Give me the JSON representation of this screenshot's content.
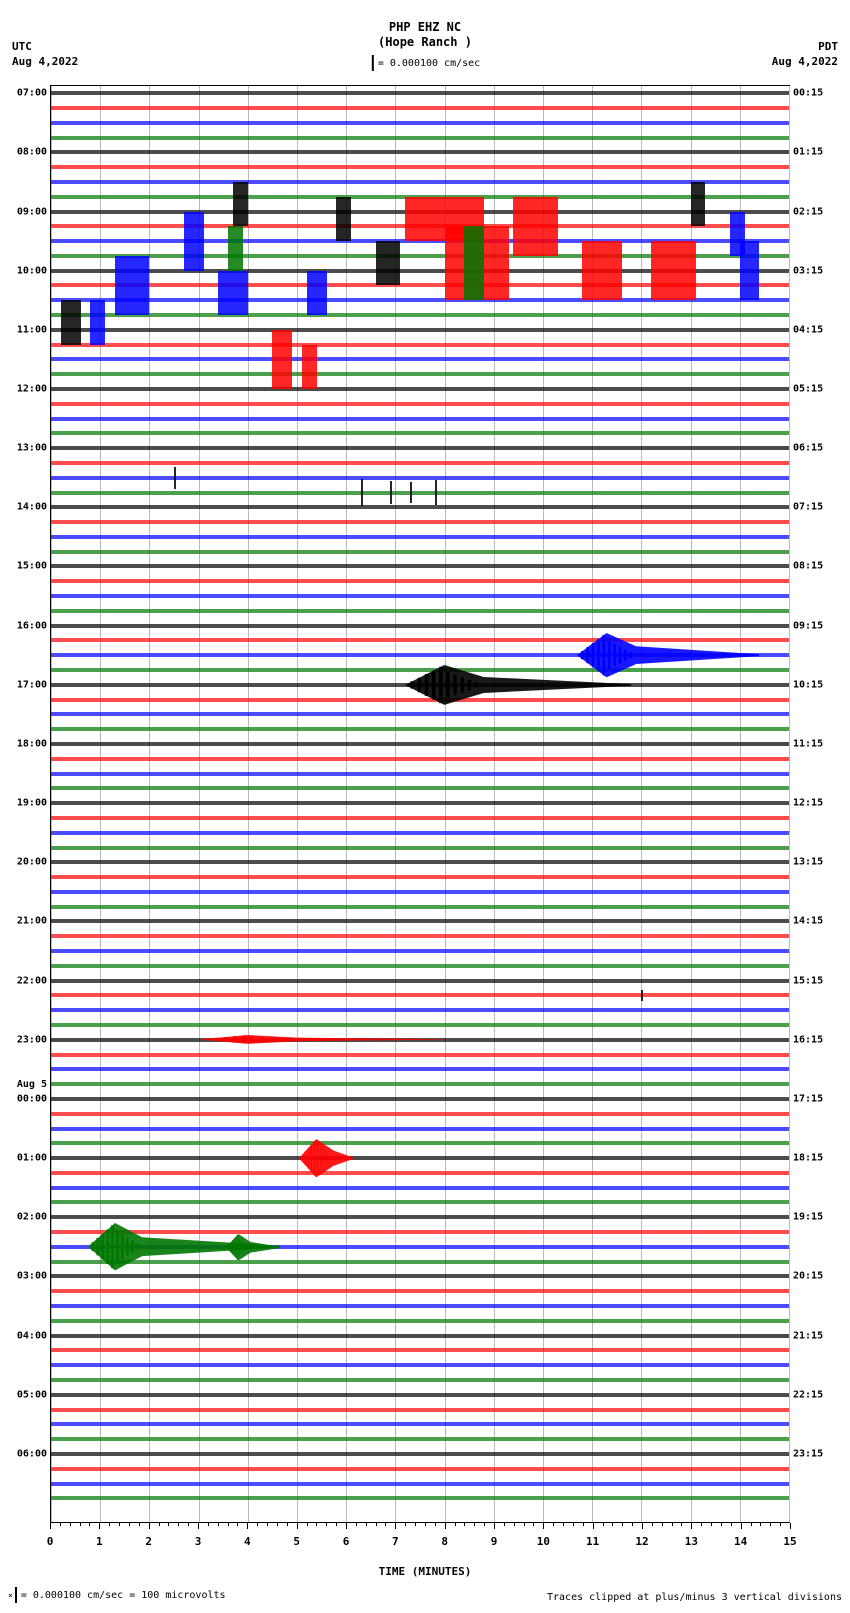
{
  "header": {
    "station": "PHP EHZ NC",
    "location": "(Hope Ranch )",
    "scale_text": "= 0.000100 cm/sec"
  },
  "timezones": {
    "left_tz": "UTC",
    "left_date": "Aug 4,2022",
    "right_tz": "PDT",
    "right_date": "Aug 4,2022"
  },
  "xaxis": {
    "label": "TIME (MINUTES)",
    "ticks": [
      0,
      1,
      2,
      3,
      4,
      5,
      6,
      7,
      8,
      9,
      10,
      11,
      12,
      13,
      14,
      15
    ],
    "minor_per_major": 5
  },
  "footer": {
    "left": "= 0.000100 cm/sec =    100 microvolts",
    "right": "Traces clipped at plus/minus 3 vertical divisions"
  },
  "colors": {
    "sequence": [
      "#000000",
      "#ff0000",
      "#0000ff",
      "#007700"
    ],
    "grid": "#bbbbbb",
    "bg": "#ffffff"
  },
  "plot": {
    "n_traces": 96,
    "trace_spacing_pct": 1.03,
    "top_offset_pct": 0.5
  },
  "left_hour_labels": [
    {
      "trace": 0,
      "text": "07:00"
    },
    {
      "trace": 4,
      "text": "08:00"
    },
    {
      "trace": 8,
      "text": "09:00"
    },
    {
      "trace": 12,
      "text": "10:00"
    },
    {
      "trace": 16,
      "text": "11:00"
    },
    {
      "trace": 20,
      "text": "12:00"
    },
    {
      "trace": 24,
      "text": "13:00"
    },
    {
      "trace": 28,
      "text": "14:00"
    },
    {
      "trace": 32,
      "text": "15:00"
    },
    {
      "trace": 36,
      "text": "16:00"
    },
    {
      "trace": 40,
      "text": "17:00"
    },
    {
      "trace": 44,
      "text": "18:00"
    },
    {
      "trace": 48,
      "text": "19:00"
    },
    {
      "trace": 52,
      "text": "20:00"
    },
    {
      "trace": 56,
      "text": "21:00"
    },
    {
      "trace": 60,
      "text": "22:00"
    },
    {
      "trace": 64,
      "text": "23:00"
    },
    {
      "trace": 68,
      "text": "00:00",
      "day": "Aug 5"
    },
    {
      "trace": 72,
      "text": "01:00"
    },
    {
      "trace": 76,
      "text": "02:00"
    },
    {
      "trace": 80,
      "text": "03:00"
    },
    {
      "trace": 84,
      "text": "04:00"
    },
    {
      "trace": 88,
      "text": "05:00"
    },
    {
      "trace": 92,
      "text": "06:00"
    }
  ],
  "right_hour_labels": [
    {
      "trace": 0,
      "text": "00:15"
    },
    {
      "trace": 4,
      "text": "01:15"
    },
    {
      "trace": 8,
      "text": "02:15"
    },
    {
      "trace": 12,
      "text": "03:15"
    },
    {
      "trace": 16,
      "text": "04:15"
    },
    {
      "trace": 20,
      "text": "05:15"
    },
    {
      "trace": 24,
      "text": "06:15"
    },
    {
      "trace": 28,
      "text": "07:15"
    },
    {
      "trace": 32,
      "text": "08:15"
    },
    {
      "trace": 36,
      "text": "09:15"
    },
    {
      "trace": 40,
      "text": "10:15"
    },
    {
      "trace": 44,
      "text": "11:15"
    },
    {
      "trace": 48,
      "text": "12:15"
    },
    {
      "trace": 52,
      "text": "13:15"
    },
    {
      "trace": 56,
      "text": "14:15"
    },
    {
      "trace": 60,
      "text": "15:15"
    },
    {
      "trace": 64,
      "text": "16:15"
    },
    {
      "trace": 68,
      "text": "17:15"
    },
    {
      "trace": 72,
      "text": "18:15"
    },
    {
      "trace": 76,
      "text": "19:15"
    },
    {
      "trace": 80,
      "text": "20:15"
    },
    {
      "trace": 84,
      "text": "21:15"
    },
    {
      "trace": 88,
      "text": "22:15"
    },
    {
      "trace": 92,
      "text": "23:15"
    }
  ],
  "spike_blocks": [
    {
      "trace_start": 7,
      "trace_end": 10,
      "x_start": 7.2,
      "x_end": 8.8,
      "color": "#ff0000"
    },
    {
      "trace_start": 7,
      "trace_end": 11,
      "x_start": 9.4,
      "x_end": 10.3,
      "color": "#ff0000"
    },
    {
      "trace_start": 7,
      "trace_end": 10,
      "x_start": 5.8,
      "x_end": 6.1,
      "color": "#000000"
    },
    {
      "trace_start": 6,
      "trace_end": 9,
      "x_start": 13.0,
      "x_end": 13.3,
      "color": "#000000"
    },
    {
      "trace_start": 8,
      "trace_end": 12,
      "x_start": 2.7,
      "x_end": 3.1,
      "color": "#0000ff"
    },
    {
      "trace_start": 9,
      "trace_end": 14,
      "x_start": 8.0,
      "x_end": 9.3,
      "color": "#ff0000"
    },
    {
      "trace_start": 10,
      "trace_end": 14,
      "x_start": 10.8,
      "x_end": 11.6,
      "color": "#ff0000"
    },
    {
      "trace_start": 10,
      "trace_end": 14,
      "x_start": 12.2,
      "x_end": 13.1,
      "color": "#ff0000"
    },
    {
      "trace_start": 10,
      "trace_end": 13,
      "x_start": 6.6,
      "x_end": 7.1,
      "color": "#000000"
    },
    {
      "trace_start": 11,
      "trace_end": 15,
      "x_start": 1.3,
      "x_end": 2.0,
      "color": "#0000ff"
    },
    {
      "trace_start": 12,
      "trace_end": 15,
      "x_start": 3.4,
      "x_end": 4.0,
      "color": "#0000ff"
    },
    {
      "trace_start": 12,
      "trace_end": 15,
      "x_start": 5.2,
      "x_end": 5.6,
      "color": "#0000ff"
    },
    {
      "trace_start": 9,
      "trace_end": 12,
      "x_start": 3.6,
      "x_end": 3.9,
      "color": "#007700"
    },
    {
      "trace_start": 14,
      "trace_end": 17,
      "x_start": 0.2,
      "x_end": 0.6,
      "color": "#000000"
    },
    {
      "trace_start": 14,
      "trace_end": 17,
      "x_start": 0.8,
      "x_end": 1.1,
      "color": "#0000ff"
    },
    {
      "trace_start": 16,
      "trace_end": 20,
      "x_start": 4.5,
      "x_end": 4.9,
      "color": "#ff0000"
    },
    {
      "trace_start": 17,
      "trace_end": 20,
      "x_start": 5.1,
      "x_end": 5.4,
      "color": "#ff0000"
    },
    {
      "trace_start": 8,
      "trace_end": 11,
      "x_start": 13.8,
      "x_end": 14.1,
      "color": "#0000ff"
    },
    {
      "trace_start": 10,
      "trace_end": 14,
      "x_start": 14.0,
      "x_end": 14.4,
      "color": "#0000ff"
    },
    {
      "trace_start": 6,
      "trace_end": 9,
      "x_start": 3.7,
      "x_end": 4.0,
      "color": "#000000"
    },
    {
      "trace_start": 9,
      "trace_end": 14,
      "x_start": 8.4,
      "x_end": 8.8,
      "color": "#007700"
    }
  ],
  "thin_spikes": [
    {
      "trace": 26,
      "x": 2.5,
      "height": 1.5,
      "color": "#000000"
    },
    {
      "trace": 27,
      "x": 6.3,
      "height": 1.8,
      "color": "#000000"
    },
    {
      "trace": 27,
      "x": 6.9,
      "height": 1.6,
      "color": "#000000"
    },
    {
      "trace": 27,
      "x": 7.3,
      "height": 1.4,
      "color": "#000000"
    },
    {
      "trace": 27,
      "x": 7.8,
      "height": 1.7,
      "color": "#000000"
    },
    {
      "trace": 61,
      "x": 12.0,
      "height": 0.8,
      "color": "#000000"
    }
  ],
  "events": [
    {
      "trace": 38,
      "x_center": 11.3,
      "width": 1.2,
      "height": 3.0,
      "color": "#0000ff",
      "tail": 2.5
    },
    {
      "trace": 40,
      "x_center": 8.0,
      "width": 1.6,
      "height": 2.7,
      "color": "#000000",
      "tail": 3.0
    },
    {
      "trace": 72,
      "x_center": 5.4,
      "width": 0.7,
      "height": 2.6,
      "color": "#ff0000",
      "tail": 0.4
    },
    {
      "trace": 78,
      "x_center": 1.3,
      "width": 1.1,
      "height": 3.2,
      "color": "#007700",
      "tail": 2.8
    },
    {
      "trace": 78,
      "x_center": 3.8,
      "width": 0.5,
      "height": 1.8,
      "color": "#007700",
      "tail": 0.6
    },
    {
      "trace": 64,
      "x_center": 4.0,
      "width": 2.0,
      "height": 0.6,
      "color": "#ff0000",
      "tail": 3.0
    }
  ]
}
